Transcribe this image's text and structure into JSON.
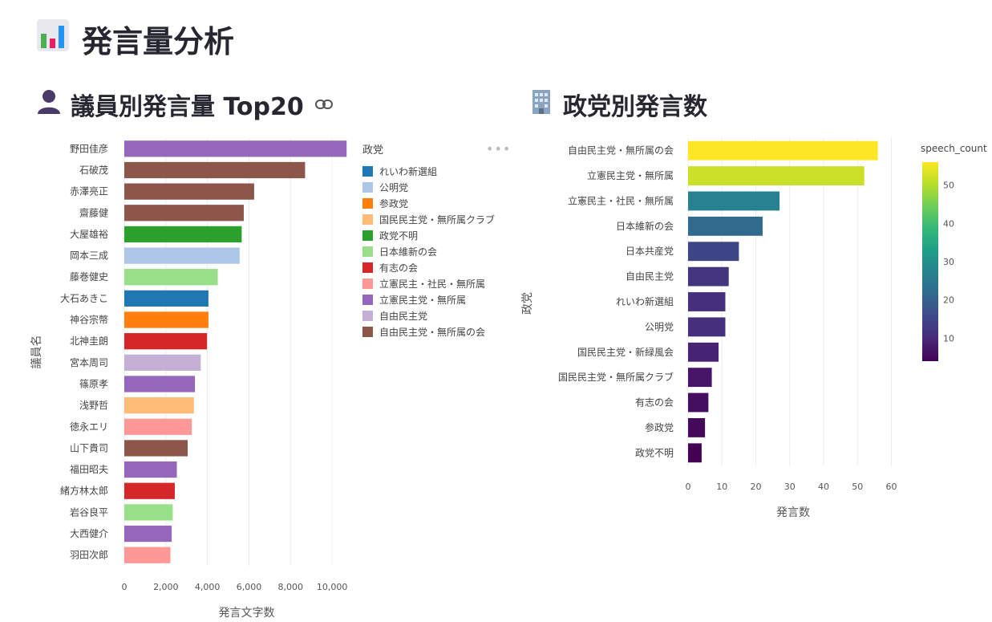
{
  "page": {
    "title": "発言量分析",
    "title_icon": "bar-chart-icon"
  },
  "sections": {
    "members": {
      "title": "議員別発言量 Top20",
      "icon": "person-icon",
      "link_icon": "link-icon"
    },
    "parties": {
      "title": "政党別発言数",
      "icon": "building-icon"
    }
  },
  "chart_data": [
    {
      "type": "bar",
      "orientation": "horizontal",
      "xlabel": "発言文字数",
      "ylabel": "議員名",
      "xlim": [
        0,
        11000
      ],
      "xticks": [
        0,
        2000,
        4000,
        6000,
        8000,
        10000
      ],
      "xtick_labels": [
        "0",
        "2,000",
        "4,000",
        "6,000",
        "8,000",
        "10,000"
      ],
      "grid": true,
      "legend": {
        "title": "政党",
        "placement": "right",
        "entries": [
          {
            "name": "れいわ新選組",
            "color": "#1f77b4"
          },
          {
            "name": "公明党",
            "color": "#aec7e8"
          },
          {
            "name": "参政党",
            "color": "#ff7f0e"
          },
          {
            "name": "国民民主党・無所属クラブ",
            "color": "#ffbb78"
          },
          {
            "name": "政党不明",
            "color": "#2ca02c"
          },
          {
            "name": "日本維新の会",
            "color": "#98df8a"
          },
          {
            "name": "有志の会",
            "color": "#d62728"
          },
          {
            "name": "立憲民主・社民・無所属",
            "color": "#ff9896"
          },
          {
            "name": "立憲民主党・無所属",
            "color": "#9467bd"
          },
          {
            "name": "自由民主党",
            "color": "#c5b0d5"
          },
          {
            "name": "自由民主党・無所属の会",
            "color": "#8c564b"
          }
        ]
      },
      "categories": [
        "野田佳彦",
        "石破茂",
        "赤澤亮正",
        "齋藤健",
        "大屋雄裕",
        "岡本三成",
        "藤巻健史",
        "大石あきこ",
        "神谷宗幣",
        "北神圭朗",
        "宮本周司",
        "篠原孝",
        "浅野哲",
        "徳永エリ",
        "山下貴司",
        "福田昭夫",
        "緒方林太郎",
        "岩谷良平",
        "大西健介",
        "羽田次郎"
      ],
      "values": [
        10700,
        8700,
        6250,
        5750,
        5650,
        5550,
        4500,
        4050,
        4050,
        3980,
        3680,
        3400,
        3350,
        3250,
        3050,
        2530,
        2430,
        2330,
        2280,
        2220
      ],
      "party": [
        "立憲民主党・無所属",
        "自由民主党・無所属の会",
        "自由民主党・無所属の会",
        "自由民主党・無所属の会",
        "政党不明",
        "公明党",
        "日本維新の会",
        "れいわ新選組",
        "参政党",
        "有志の会",
        "自由民主党",
        "立憲民主党・無所属",
        "国民民主党・無所属クラブ",
        "立憲民主・社民・無所属",
        "自由民主党・無所属の会",
        "立憲民主党・無所属",
        "有志の会",
        "日本維新の会",
        "立憲民主党・無所属",
        "立憲民主・社民・無所属"
      ]
    },
    {
      "type": "bar",
      "orientation": "horizontal",
      "xlabel": "発言数",
      "ylabel": "政党",
      "xlim": [
        0,
        62
      ],
      "xticks": [
        0,
        10,
        20,
        30,
        40,
        50,
        60
      ],
      "grid": true,
      "colorbar": {
        "title": "speech_count",
        "ticks": [
          10,
          20,
          30,
          40,
          50
        ],
        "range": [
          4,
          56
        ],
        "colorscale": "viridis"
      },
      "categories": [
        "自由民主党・無所属の会",
        "立憲民主党・無所属",
        "立憲民主・社民・無所属",
        "日本維新の会",
        "日本共産党",
        "自由民主党",
        "れいわ新選組",
        "公明党",
        "国民民主党・新緑風会",
        "国民民主党・無所属クラブ",
        "有志の会",
        "参政党",
        "政党不明"
      ],
      "values": [
        56,
        52,
        27,
        22,
        15,
        12,
        11,
        11,
        9,
        7,
        6,
        5,
        4
      ]
    }
  ]
}
